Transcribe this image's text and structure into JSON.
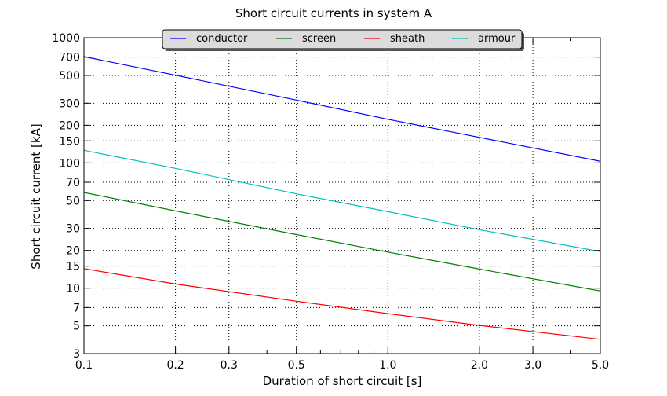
{
  "chart_data": {
    "type": "line",
    "title": "Short circuit currents in system A",
    "xlabel": "Duration of short circuit [s]",
    "ylabel": "Short circuit current [kA]",
    "xscale": "log",
    "yscale": "log",
    "xlim": [
      0.1,
      5.0
    ],
    "ylim": [
      3,
      1000
    ],
    "grid": true,
    "legend_placement": "top-center",
    "xticks": [
      0.1,
      0.2,
      0.3,
      0.5,
      1.0,
      2.0,
      3.0,
      5.0
    ],
    "xtick_labels": [
      "0.1",
      "0.2",
      "0.3",
      "0.5",
      "1.0",
      "2.0",
      "3.0",
      "5.0"
    ],
    "yticks": [
      3,
      5,
      7,
      10,
      15,
      20,
      30,
      50,
      70,
      100,
      150,
      200,
      300,
      500,
      700,
      1000
    ],
    "ytick_labels": [
      "3",
      "5",
      "7",
      "10",
      "15",
      "20",
      "30",
      "50",
      "70",
      "100",
      "150",
      "200",
      "300",
      "500",
      "700",
      "1000"
    ],
    "x": [
      0.1,
      0.2,
      0.5,
      1.0,
      2.0,
      5.0
    ],
    "series": [
      {
        "name": "conductor",
        "color": "#0000ff",
        "values": [
          707,
          502,
          318,
          223,
          160,
          103
        ]
      },
      {
        "name": "screen",
        "color": "#008000",
        "values": [
          58,
          41.4,
          26.8,
          19.4,
          14.2,
          9.5
        ]
      },
      {
        "name": "sheath",
        "color": "#ff0000",
        "values": [
          14.3,
          10.8,
          7.86,
          6.26,
          5.04,
          3.9
        ]
      },
      {
        "name": "armour",
        "color": "#00bfbf",
        "values": [
          126,
          90.4,
          56.6,
          40.8,
          29.3,
          19.6
        ]
      }
    ]
  }
}
